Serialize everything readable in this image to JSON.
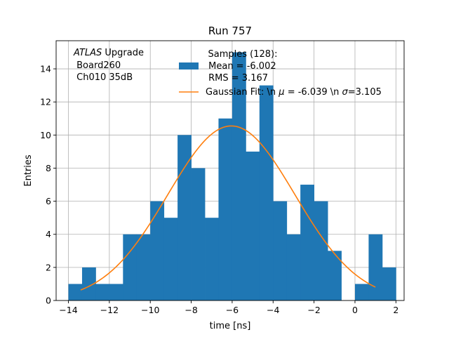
{
  "chart_data": {
    "type": "bar",
    "title": "Run 757",
    "xlabel": "time [ns]",
    "ylabel": "Entries",
    "xlim": [
      -14.6,
      2.4
    ],
    "ylim": [
      0,
      15.7
    ],
    "grid": true,
    "x_ticks": [
      -14,
      -12,
      -10,
      -8,
      -6,
      -4,
      -2,
      0,
      2
    ],
    "y_ticks": [
      0,
      2,
      4,
      6,
      8,
      10,
      12,
      14
    ],
    "bin_width": 0.667,
    "bins": [
      {
        "x0": -14.0,
        "value": 1
      },
      {
        "x0": -13.333,
        "value": 2
      },
      {
        "x0": -12.667,
        "value": 1
      },
      {
        "x0": -12.0,
        "value": 1
      },
      {
        "x0": -11.333,
        "value": 4
      },
      {
        "x0": -10.667,
        "value": 4
      },
      {
        "x0": -10.0,
        "value": 6
      },
      {
        "x0": -9.333,
        "value": 5
      },
      {
        "x0": -8.667,
        "value": 10
      },
      {
        "x0": -8.0,
        "value": 8
      },
      {
        "x0": -7.333,
        "value": 5
      },
      {
        "x0": -6.667,
        "value": 11
      },
      {
        "x0": -6.0,
        "value": 15
      },
      {
        "x0": -5.333,
        "value": 9
      },
      {
        "x0": -4.667,
        "value": 13
      },
      {
        "x0": -4.0,
        "value": 6
      },
      {
        "x0": -3.333,
        "value": 4
      },
      {
        "x0": -2.667,
        "value": 7
      },
      {
        "x0": -2.0,
        "value": 6
      },
      {
        "x0": -1.333,
        "value": 3
      },
      {
        "x0": -0.667,
        "value": 0
      },
      {
        "x0": 0.0,
        "value": 1
      },
      {
        "x0": 0.667,
        "value": 4
      },
      {
        "x0": 1.333,
        "value": 2
      }
    ],
    "fit": {
      "mu": -6.039,
      "sigma": 3.105,
      "amplitude": 10.55,
      "x_range": [
        -13.4,
        1.0
      ]
    },
    "colors": {
      "hist": "#1f77b4",
      "fit": "#ff7f0e",
      "grid": "#b0b0b0"
    },
    "annotation": {
      "atlas": "ATLAS",
      "upgrade": " Upgrade",
      "line2": " Board260",
      "line3": " Ch010 35dB"
    },
    "legend": {
      "placement": "top-right",
      "title": "Samples (128):",
      "hist_mean": " Mean = -6.002",
      "hist_rms": " RMS = 3.167",
      "fit_prefix": "Gaussian Fit: \\n ",
      "mu_symbol": "μ",
      "mu_text": " = -6.039 \\n ",
      "sigma_symbol": "σ",
      "sigma_text": "=3.105"
    }
  }
}
